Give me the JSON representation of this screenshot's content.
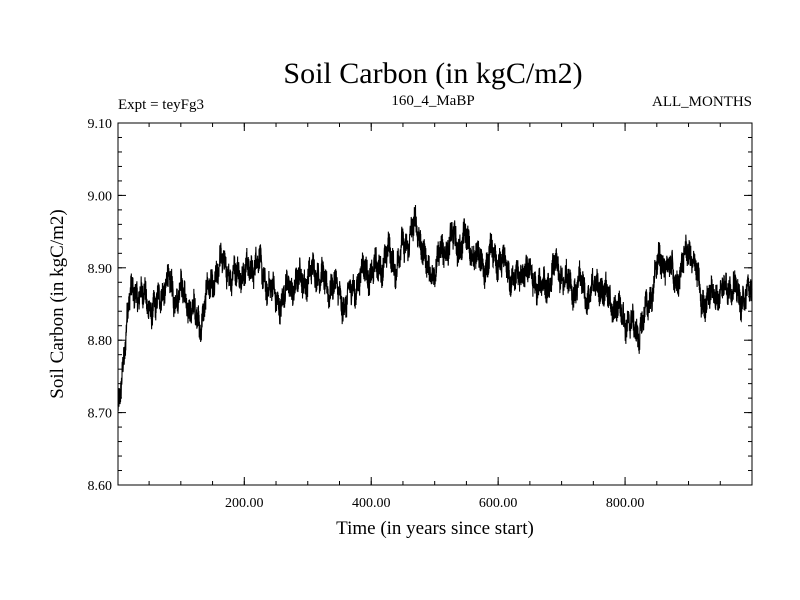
{
  "chart_data": {
    "type": "line",
    "title": "Soil Carbon (in kgC/m2)",
    "subtitle_left": "Expt = teyFg3",
    "subtitle_center": "160_4_MaBP",
    "subtitle_right": "ALL_MONTHS",
    "xlabel": "Time (in years since start)",
    "ylabel": "Soil Carbon (in kgC/m2)",
    "xlim": [
      1,
      1000
    ],
    "ylim": [
      8.6,
      9.1
    ],
    "x_ticks": [
      200,
      400,
      600,
      800
    ],
    "x_tick_labels": [
      "200.00",
      "400.00",
      "600.00",
      "800.00"
    ],
    "y_ticks": [
      8.6,
      8.7,
      8.8,
      8.9,
      9.0,
      9.1
    ],
    "y_tick_labels": [
      "8.60",
      "8.70",
      "8.80",
      "8.90",
      "9.00",
      "9.10"
    ],
    "series": [
      {
        "name": "Soil Carbon",
        "color": "#000000",
        "x": [
          1,
          5,
          10,
          15,
          20,
          30,
          40,
          50,
          60,
          70,
          80,
          90,
          100,
          110,
          120,
          130,
          140,
          150,
          160,
          170,
          180,
          190,
          200,
          210,
          220,
          230,
          240,
          250,
          260,
          270,
          280,
          290,
          300,
          310,
          320,
          330,
          340,
          350,
          360,
          370,
          380,
          390,
          400,
          410,
          420,
          430,
          440,
          450,
          460,
          470,
          475,
          480,
          490,
          500,
          510,
          520,
          530,
          540,
          550,
          560,
          570,
          580,
          590,
          600,
          610,
          620,
          630,
          640,
          650,
          660,
          670,
          680,
          690,
          700,
          710,
          720,
          730,
          740,
          750,
          760,
          770,
          780,
          790,
          800,
          810,
          820,
          830,
          840,
          850,
          860,
          870,
          880,
          890,
          900,
          910,
          920,
          930,
          940,
          950,
          960,
          970,
          980,
          990,
          1000
        ],
        "y": [
          8.69,
          8.73,
          8.78,
          8.83,
          8.86,
          8.87,
          8.86,
          8.85,
          8.84,
          8.87,
          8.88,
          8.86,
          8.87,
          8.85,
          8.84,
          8.82,
          8.86,
          8.88,
          8.9,
          8.91,
          8.88,
          8.9,
          8.89,
          8.9,
          8.91,
          8.89,
          8.87,
          8.86,
          8.85,
          8.88,
          8.87,
          8.89,
          8.88,
          8.9,
          8.89,
          8.87,
          8.88,
          8.86,
          8.85,
          8.87,
          8.88,
          8.9,
          8.89,
          8.9,
          8.91,
          8.92,
          8.9,
          8.93,
          8.94,
          8.96,
          8.95,
          8.93,
          8.89,
          8.9,
          8.92,
          8.93,
          8.94,
          8.93,
          8.94,
          8.92,
          8.91,
          8.9,
          8.92,
          8.91,
          8.9,
          8.89,
          8.88,
          8.9,
          8.89,
          8.88,
          8.87,
          8.88,
          8.9,
          8.89,
          8.88,
          8.87,
          8.88,
          8.86,
          8.87,
          8.88,
          8.86,
          8.85,
          8.84,
          8.83,
          8.82,
          8.81,
          8.83,
          8.86,
          8.9,
          8.91,
          8.9,
          8.88,
          8.9,
          8.93,
          8.9,
          8.86,
          8.85,
          8.87,
          8.86,
          8.88,
          8.87,
          8.86,
          8.86,
          8.87
        ],
        "variability": 0.022
      }
    ]
  }
}
